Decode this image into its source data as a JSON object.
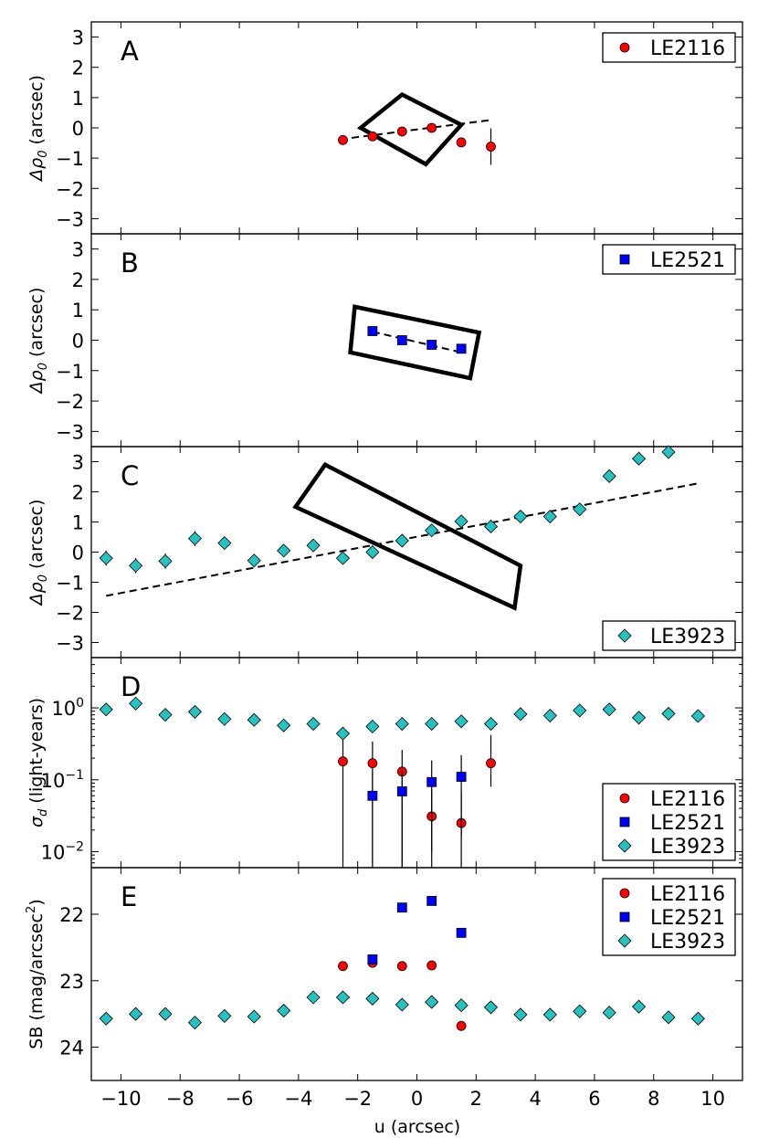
{
  "figure": {
    "xlabel": "u (arcsec)",
    "xlim": [
      -11,
      11
    ],
    "xticks": [
      -10,
      -8,
      -6,
      -4,
      -2,
      0,
      2,
      4,
      6,
      8,
      10
    ],
    "xtick_labels": [
      "−10",
      "−8",
      "−6",
      "−4",
      "−2",
      "0",
      "2",
      "4",
      "6",
      "8",
      "10"
    ]
  },
  "colors": {
    "LE2116": "#ff0000",
    "LE2521": "#0000ff",
    "LE3923": "#26c2c2",
    "axis": "#000000"
  },
  "chart_data": [
    {
      "type": "scatter",
      "panel_label": "A",
      "ylabel_symbol": "Δρ",
      "ylabel_sub": "0",
      "ylabel_rest": " (arcsec)",
      "ylim": [
        -3.5,
        3.5
      ],
      "yscale": "linear",
      "yticks": [
        -3,
        -2,
        -1,
        0,
        1,
        2,
        3
      ],
      "ytick_labels": [
        "−3",
        "−2",
        "−1",
        "0",
        "1",
        "2",
        "3"
      ],
      "legend_loc": "top-right",
      "legend": [
        "LE2116"
      ],
      "series": [
        {
          "name": "LE2116",
          "marker": "circle",
          "x": [
            -2.5,
            -1.5,
            -0.5,
            0.5,
            1.5,
            2.5
          ],
          "y": [
            -0.4,
            -0.28,
            -0.12,
            0.0,
            -0.48,
            -0.62
          ],
          "yerr": [
            0.04,
            0.04,
            0.05,
            0.05,
            0.08,
            0.6
          ]
        }
      ],
      "fit_line": {
        "x": [
          -2.6,
          2.5
        ],
        "y": [
          -0.38,
          0.26
        ]
      },
      "box_corners": [
        [
          -1.9,
          0.0
        ],
        [
          -0.5,
          1.1
        ],
        [
          1.5,
          0.1
        ],
        [
          0.3,
          -1.2
        ]
      ]
    },
    {
      "type": "scatter",
      "panel_label": "B",
      "ylabel_symbol": "Δρ",
      "ylabel_sub": "0",
      "ylabel_rest": " (arcsec)",
      "ylim": [
        -3.5,
        3.5
      ],
      "yscale": "linear",
      "yticks": [
        -3,
        -2,
        -1,
        0,
        1,
        2,
        3
      ],
      "ytick_labels": [
        "−3",
        "−2",
        "−1",
        "0",
        "1",
        "2",
        "3"
      ],
      "legend_loc": "top-right",
      "legend": [
        "LE2521"
      ],
      "series": [
        {
          "name": "LE2521",
          "marker": "square",
          "x": [
            -1.5,
            -0.5,
            0.5,
            1.5
          ],
          "y": [
            0.3,
            0.0,
            -0.15,
            -0.28
          ],
          "yerr": [
            0.05,
            0.05,
            0.05,
            0.06
          ]
        }
      ],
      "fit_line": {
        "x": [
          -1.5,
          1.5
        ],
        "y": [
          0.28,
          -0.4
        ]
      },
      "box_corners": [
        [
          -2.1,
          1.1
        ],
        [
          2.1,
          0.25
        ],
        [
          1.8,
          -1.25
        ],
        [
          -2.25,
          -0.4
        ]
      ]
    },
    {
      "type": "scatter",
      "panel_label": "C",
      "ylabel_symbol": "Δρ",
      "ylabel_sub": "0",
      "ylabel_rest": " (arcsec)",
      "ylim": [
        -3.5,
        3.5
      ],
      "yscale": "linear",
      "yticks": [
        -3,
        -2,
        -1,
        0,
        1,
        2,
        3
      ],
      "ytick_labels": [
        "−3",
        "−2",
        "−1",
        "0",
        "1",
        "2",
        "3"
      ],
      "legend_loc": "bottom-right",
      "legend": [
        "LE3923"
      ],
      "series": [
        {
          "name": "LE3923",
          "marker": "diamond",
          "x": [
            -10.5,
            -9.5,
            -8.5,
            -7.5,
            -6.5,
            -5.5,
            -4.5,
            -3.5,
            -2.5,
            -1.5,
            -0.5,
            0.5,
            1.5,
            2.5,
            3.5,
            4.5,
            5.5,
            6.5,
            7.5,
            8.5
          ],
          "y": [
            -0.2,
            -0.45,
            -0.3,
            0.45,
            0.3,
            -0.28,
            0.05,
            0.22,
            -0.2,
            0.0,
            0.38,
            0.72,
            1.02,
            0.85,
            1.18,
            1.18,
            1.42,
            2.52,
            3.1,
            3.32
          ],
          "yerr": [
            0.25,
            0.25,
            0.25,
            0.25,
            0.2,
            0.15,
            0.12,
            0.12,
            0.15,
            0.1,
            0.15,
            0.12,
            0.12,
            0.15,
            0.2,
            0.15,
            0.2,
            0.2,
            0.15,
            0.2
          ]
        }
      ],
      "fit_line": {
        "x": [
          -10.5,
          9.5
        ],
        "y": [
          -1.45,
          2.28
        ]
      },
      "box_corners": [
        [
          -3.1,
          2.9
        ],
        [
          3.5,
          -0.45
        ],
        [
          3.3,
          -1.85
        ],
        [
          -4.1,
          1.5
        ]
      ]
    },
    {
      "type": "scatter",
      "panel_label": "D",
      "ylabel_symbol": "σ",
      "ylabel_sub": "d",
      "ylabel_rest": " (light-years)",
      "ylim": [
        0.006,
        5.0
      ],
      "yscale": "log",
      "yticks": [
        0.01,
        0.1,
        1.0
      ],
      "ytick_base": "10",
      "ytick_exponents": [
        "−2",
        "−1",
        "0"
      ],
      "legend_loc": "bottom-right",
      "legend": [
        "LE2116",
        "LE2521",
        "LE3923"
      ],
      "series": [
        {
          "name": "LE2116",
          "marker": "circle",
          "x": [
            -2.5,
            -1.5,
            -0.5,
            0.5,
            1.5,
            2.5
          ],
          "y": [
            0.18,
            0.17,
            0.13,
            0.031,
            0.025,
            0.17
          ],
          "err_lo": [
            0.18,
            0.17,
            0.13,
            0.021,
            0.009,
            0.09
          ],
          "err_hi": [
            0.18,
            0.17,
            0.13,
            0.042,
            0.042,
            0.25
          ]
        },
        {
          "name": "LE2521",
          "marker": "square",
          "x": [
            -1.5,
            -0.5,
            0.5,
            1.5
          ],
          "y": [
            0.06,
            0.069,
            0.093,
            0.11
          ],
          "err_lo": [
            0.053,
            0.069,
            0.093,
            0.11
          ],
          "err_hi": [
            0.067,
            0.069,
            0.093,
            0.11
          ]
        },
        {
          "name": "LE3923",
          "marker": "diamond",
          "x": [
            -10.5,
            -9.5,
            -8.5,
            -7.5,
            -6.5,
            -5.5,
            -4.5,
            -3.5,
            -2.5,
            -1.5,
            -0.5,
            0.5,
            1.5,
            2.5,
            3.5,
            4.5,
            5.5,
            6.5,
            7.5,
            8.5,
            9.5
          ],
          "y": [
            0.95,
            1.15,
            0.8,
            0.88,
            0.7,
            0.68,
            0.57,
            0.6,
            0.44,
            0.55,
            0.6,
            0.6,
            0.65,
            0.6,
            0.82,
            0.78,
            0.92,
            0.95,
            0.73,
            0.83,
            0.77
          ]
        }
      ]
    },
    {
      "type": "scatter",
      "panel_label": "E",
      "ylabel_text": "SB (mag/arcsec",
      "ylabel_sup": "2",
      "ylabel_close": ")",
      "ylim": [
        24.5,
        21.3
      ],
      "yscale": "linear",
      "yinverted": true,
      "yticks": [
        22,
        23,
        24
      ],
      "ytick_labels": [
        "22",
        "23",
        "24"
      ],
      "legend_loc": "top-right",
      "legend": [
        "LE2116",
        "LE2521",
        "LE3923"
      ],
      "series": [
        {
          "name": "LE2116",
          "marker": "circle",
          "x": [
            -2.5,
            -1.5,
            -0.5,
            0.5,
            1.5
          ],
          "y": [
            22.78,
            22.73,
            22.78,
            22.77,
            23.68
          ]
        },
        {
          "name": "LE2521",
          "marker": "square",
          "x": [
            -1.5,
            -0.5,
            0.5,
            1.5
          ],
          "y": [
            22.68,
            21.9,
            21.8,
            22.28
          ]
        },
        {
          "name": "LE3923",
          "marker": "diamond",
          "x": [
            -10.5,
            -9.5,
            -8.5,
            -7.5,
            -6.5,
            -5.5,
            -4.5,
            -3.5,
            -2.5,
            -1.5,
            -0.5,
            0.5,
            1.5,
            2.5,
            3.5,
            4.5,
            5.5,
            6.5,
            7.5,
            8.5,
            9.5
          ],
          "y": [
            23.57,
            23.5,
            23.5,
            23.63,
            23.53,
            23.54,
            23.45,
            23.25,
            23.25,
            23.27,
            23.36,
            23.32,
            23.37,
            23.4,
            23.51,
            23.51,
            23.46,
            23.48,
            23.39,
            23.55,
            23.57
          ]
        }
      ]
    }
  ]
}
